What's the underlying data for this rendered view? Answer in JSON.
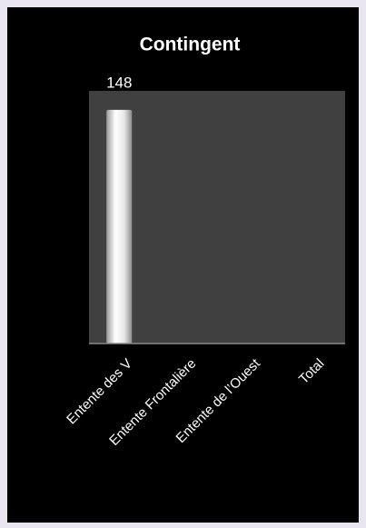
{
  "chart_data": {
    "type": "bar",
    "title": "Contingent",
    "categories": [
      "Entente des V",
      "Entente Frontalière",
      "Entente de l’Ouest",
      "Total"
    ],
    "values": [
      148,
      null,
      null,
      null
    ],
    "value_labels": [
      "148",
      null,
      null,
      null
    ],
    "ylim": [
      0,
      160
    ],
    "grid": false
  }
}
